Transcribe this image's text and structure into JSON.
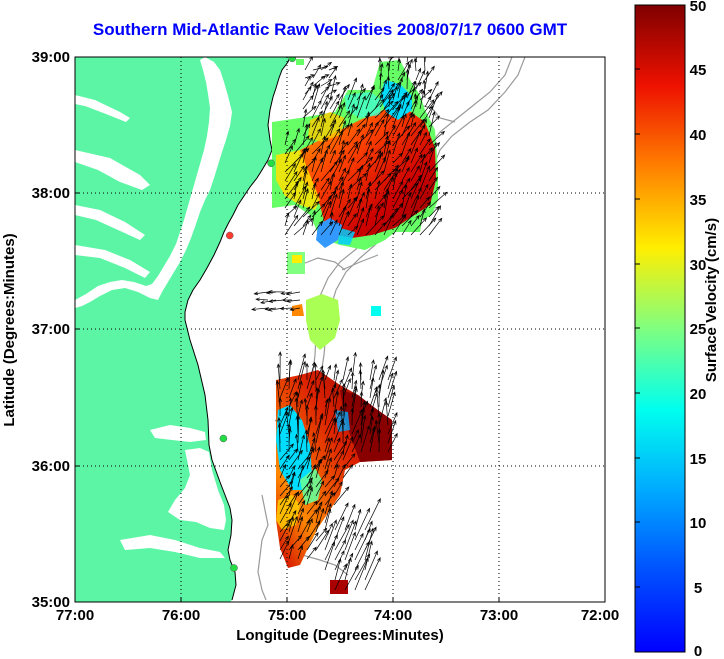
{
  "title": "Southern Mid-Atlantic Raw Velocities 2008/07/17 0600 GMT",
  "x_axis": {
    "label": "Longitude (Degrees:Minutes)",
    "ticks": [
      "77:00",
      "76:00",
      "75:00",
      "74:00",
      "73:00",
      "72:00"
    ]
  },
  "y_axis": {
    "label": "Latitude (Degrees:Minutes)",
    "ticks": [
      "39:00",
      "38:00",
      "37:00",
      "36:00",
      "35:00"
    ]
  },
  "colorbar": {
    "label": "Surface Velocity (cm/s)",
    "ticks": [
      "50",
      "45",
      "40",
      "35",
      "30",
      "25",
      "20",
      "15",
      "10",
      "5",
      "0"
    ],
    "range": [
      0,
      50
    ],
    "colormap": "jet"
  },
  "map": {
    "extent": {
      "lon": [
        -77,
        -72
      ],
      "lat": [
        35,
        39
      ]
    },
    "land_color": "#5cf5a5",
    "ocean_color": "#ffffff",
    "grid": "dotted",
    "stations": [
      {
        "lon": -74.95,
        "lat": 38.99,
        "color": "#22dd44"
      },
      {
        "lon": -75.15,
        "lat": 38.22,
        "color": "#22dd44"
      },
      {
        "lon": -75.54,
        "lat": 37.69,
        "color": "#ff3b2f"
      },
      {
        "lon": -75.6,
        "lat": 36.2,
        "color": "#22dd44"
      },
      {
        "lon": -75.5,
        "lat": 35.25,
        "color": "#22dd44"
      }
    ]
  }
}
